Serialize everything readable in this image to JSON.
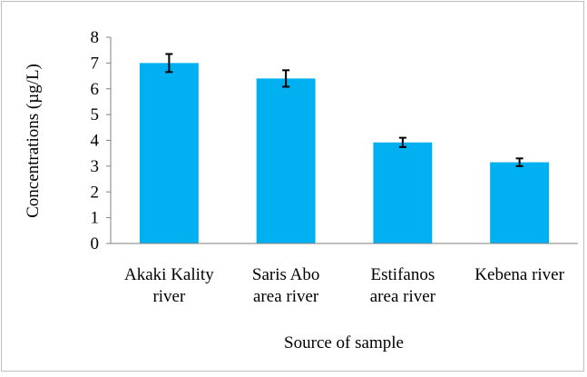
{
  "chart_data": {
    "type": "bar",
    "title": "",
    "xlabel": "Source of sample",
    "ylabel": "Concentrations (µg/L)",
    "categories": [
      [
        "Akaki Kality",
        "river"
      ],
      [
        "Saris Abo",
        "area river"
      ],
      [
        "Estifanos",
        "area river"
      ],
      [
        "Kebena  river"
      ]
    ],
    "values": [
      7.0,
      6.4,
      3.92,
      3.15
    ],
    "errors": [
      0.35,
      0.32,
      0.18,
      0.15
    ],
    "ylim": [
      0,
      8
    ],
    "yticks": [
      0,
      1,
      2,
      3,
      4,
      5,
      6,
      7,
      8
    ],
    "grid": false,
    "legend": "none",
    "bar_color": "#00B0F0",
    "error_bar_color": "#000000",
    "axis_color": "#808080"
  }
}
